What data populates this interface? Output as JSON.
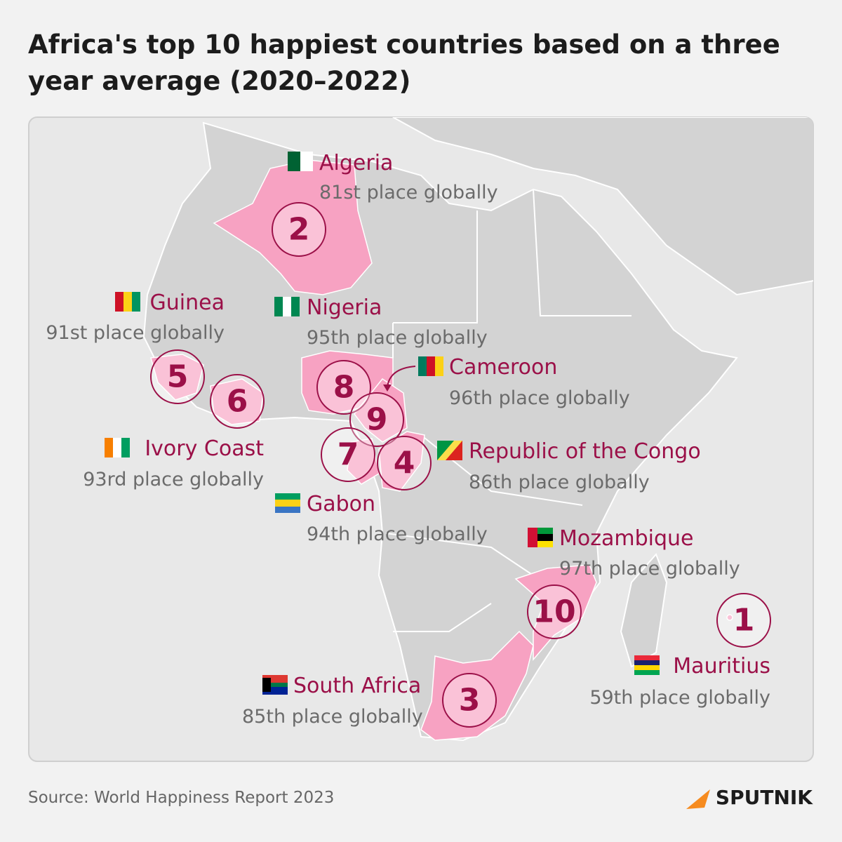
{
  "title": "Africa's top 10 happiest countries based on a three year average (2020–2022)",
  "countries": [
    {
      "name": "Algeria",
      "rank": 2,
      "place": "81st place globally"
    },
    {
      "name": "Guinea",
      "rank": 5,
      "place": "91st place globally"
    },
    {
      "name": "Nigeria",
      "rank": 8,
      "place": "95th place globally"
    },
    {
      "name": "Cameroon",
      "rank": 9,
      "place": "96th place globally"
    },
    {
      "name": "Ivory Coast",
      "rank": 6,
      "place": "93rd place globally"
    },
    {
      "name": "Republic of the Congo",
      "rank": 4,
      "place": "86th place globally"
    },
    {
      "name": "Gabon",
      "rank": 7,
      "place": "94th place globally"
    },
    {
      "name": "Mozambique",
      "rank": 10,
      "place": "97th place globally"
    },
    {
      "name": "Mauritius",
      "rank": 1,
      "place": "59th place globally"
    },
    {
      "name": "South Africa",
      "rank": 3,
      "place": "85th place globally"
    }
  ],
  "source": "Source: World Happiness Report 2023",
  "logo": "SPUTNIK"
}
